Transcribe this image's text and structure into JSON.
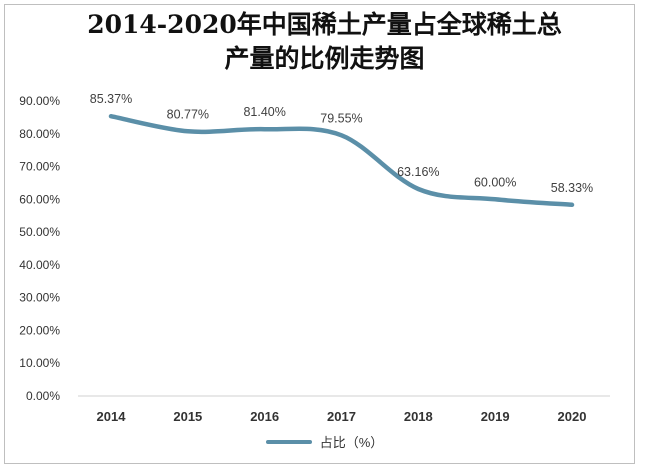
{
  "chart_data": {
    "type": "line",
    "title_lines": [
      "2014-2020年中国稀土产量占全球稀土总",
      "产量的比例走势图"
    ],
    "categories": [
      "2014",
      "2015",
      "2016",
      "2017",
      "2018",
      "2019",
      "2020"
    ],
    "series": [
      {
        "name": "占比（%）",
        "values": [
          85.37,
          80.77,
          81.4,
          79.55,
          63.16,
          60.0,
          58.33
        ],
        "labels": [
          "85.37%",
          "80.77%",
          "81.40%",
          "79.55%",
          "63.16%",
          "60.00%",
          "58.33%"
        ],
        "color": "#5b8fa8"
      }
    ],
    "y_ticks": [
      "0.00%",
      "10.00%",
      "20.00%",
      "30.00%",
      "40.00%",
      "50.00%",
      "60.00%",
      "70.00%",
      "80.00%",
      "90.00%"
    ],
    "ylim": [
      0,
      90
    ],
    "grid": false,
    "smooth": true,
    "legend_position": "bottom"
  }
}
